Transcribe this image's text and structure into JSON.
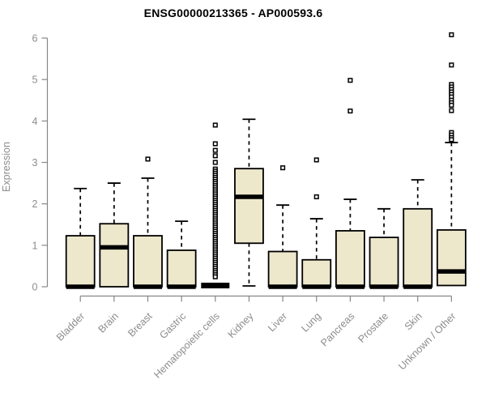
{
  "title": "ENSG00000213365 - AP000593.6",
  "ylabel": "Expression",
  "colors": {
    "box_fill": "#EDE7CC",
    "box_stroke": "#000000",
    "median": "#000000",
    "whisker": "#000000",
    "axis": "#878787",
    "tick_label": "#8C8C8C",
    "title": "#000000",
    "background": "#FFFFFF"
  },
  "chart_data": {
    "type": "boxplot",
    "title": "ENSG00000213365 - AP000593.6",
    "xlabel": "",
    "ylabel": "Expression",
    "ylim": [
      0,
      6
    ],
    "yticks": [
      0,
      1,
      2,
      3,
      4,
      5,
      6
    ],
    "grid": false,
    "legend": false,
    "categories": [
      "Bladder",
      "Brain",
      "Breast",
      "Gastric",
      "Hematopoietic cells",
      "Kidney",
      "Liver",
      "Lung",
      "Pancreas",
      "Prostate",
      "Skin",
      "Unknown / Other"
    ],
    "series": [
      {
        "name": "Bladder",
        "whisker_low": 0,
        "q1": 0,
        "median": 0,
        "q3": 1.23,
        "whisker_high": 2.37,
        "outliers": []
      },
      {
        "name": "Brain",
        "whisker_low": 0,
        "q1": 0,
        "median": 0.95,
        "q3": 1.52,
        "whisker_high": 2.5,
        "outliers": []
      },
      {
        "name": "Breast",
        "whisker_low": 0,
        "q1": 0,
        "median": 0,
        "q3": 1.23,
        "whisker_high": 2.62,
        "outliers": [
          3.08
        ]
      },
      {
        "name": "Gastric",
        "whisker_low": 0,
        "q1": 0,
        "median": 0,
        "q3": 0.88,
        "whisker_high": 1.58,
        "outliers": []
      },
      {
        "name": "Hematopoietic cells",
        "whisker_low": 0,
        "q1": 0,
        "median": 0,
        "q3": 0,
        "whisker_high": 0,
        "outliers": [
          3.9,
          3.45,
          3.29,
          3.16,
          3.0,
          2.84,
          2.79,
          2.74,
          2.69,
          2.64,
          2.59,
          2.54,
          2.49,
          2.44,
          2.39,
          2.34,
          2.29,
          2.24,
          2.19,
          2.14,
          2.09,
          2.04,
          1.99,
          1.94,
          1.89,
          1.84,
          1.79,
          1.74,
          1.69,
          1.64,
          1.59,
          1.54,
          1.49,
          1.44,
          1.39,
          1.34,
          1.29,
          1.24,
          1.19,
          1.14,
          1.09,
          1.04,
          0.99,
          0.94,
          0.89,
          0.84,
          0.79,
          0.74,
          0.69,
          0.64,
          0.59,
          0.54,
          0.49,
          0.44,
          0.39,
          0.34,
          0.29,
          0.24
        ]
      },
      {
        "name": "Kidney",
        "whisker_low": 0.02,
        "q1": 1.05,
        "median": 2.17,
        "q3": 2.85,
        "whisker_high": 4.04,
        "outliers": []
      },
      {
        "name": "Liver",
        "whisker_low": 0,
        "q1": 0,
        "median": 0,
        "q3": 0.85,
        "whisker_high": 1.97,
        "outliers": [
          2.87
        ]
      },
      {
        "name": "Lung",
        "whisker_low": 0,
        "q1": 0,
        "median": 0,
        "q3": 0.65,
        "whisker_high": 1.64,
        "outliers": [
          3.06,
          2.17
        ]
      },
      {
        "name": "Pancreas",
        "whisker_low": 0,
        "q1": 0,
        "median": 0,
        "q3": 1.35,
        "whisker_high": 2.11,
        "outliers": [
          4.98,
          4.24
        ]
      },
      {
        "name": "Prostate",
        "whisker_low": 0,
        "q1": 0,
        "median": 0,
        "q3": 1.19,
        "whisker_high": 1.88,
        "outliers": []
      },
      {
        "name": "Skin",
        "whisker_low": 0,
        "q1": 0,
        "median": 0,
        "q3": 1.88,
        "whisker_high": 2.58,
        "outliers": []
      },
      {
        "name": "Unknown / Other",
        "whisker_low": 0.03,
        "q1": 0.03,
        "median": 0.37,
        "q3": 1.37,
        "whisker_high": 3.48,
        "outliers": [
          6.08,
          5.35,
          4.88,
          4.82,
          4.76,
          4.7,
          4.64,
          4.58,
          4.5,
          4.44,
          4.38,
          4.25,
          3.72,
          3.66,
          3.6,
          3.55
        ]
      }
    ]
  }
}
